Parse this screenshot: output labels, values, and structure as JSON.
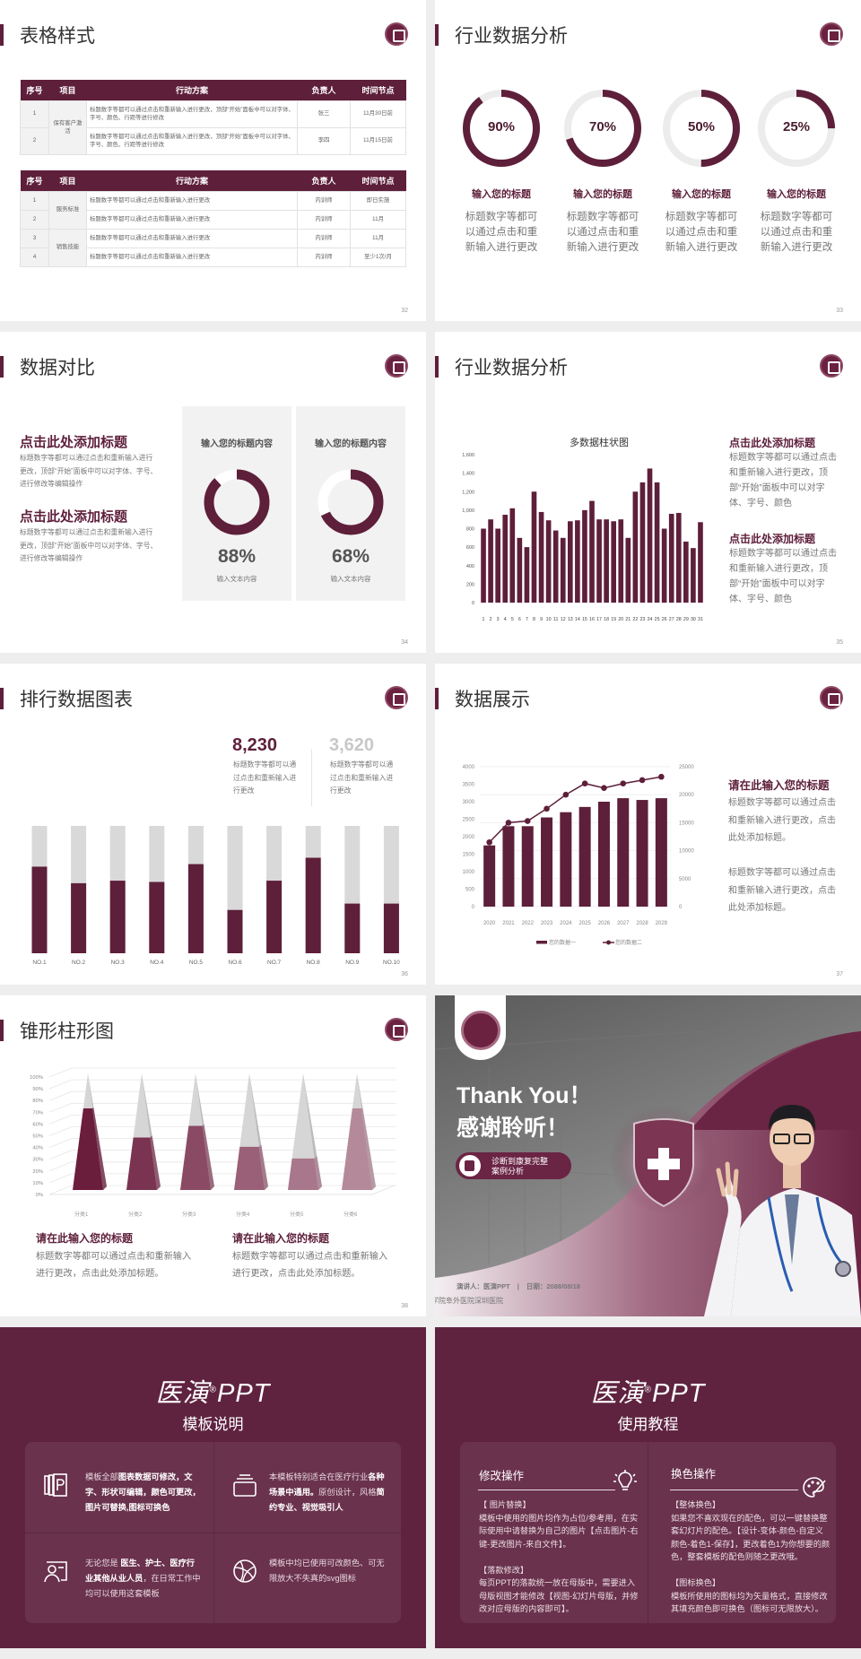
{
  "theme": {
    "accent": "#5e1f3a",
    "track": "#ececec",
    "light_bar": "#d9d9d9",
    "secondary_number": "#c8c8c8"
  },
  "logo_icon": "hospital-emblem-icon",
  "s32": {
    "title": "表格样式",
    "page": "32",
    "headers": [
      "序号",
      "项目",
      "行动方案",
      "负责人",
      "时间节点"
    ],
    "table1": {
      "group": "保有客户激活",
      "rows": [
        {
          "no": "1",
          "plan": "标题数字等都可以通过点击和重新输入进行更改，顶部“开始”面板中可以对字体、字号、颜色、行距等进行修改",
          "owner": "张三",
          "time": "11月30日前"
        },
        {
          "no": "2",
          "plan": "标题数字等都可以通过点击和重新输入进行更改，顶部“开始”面板中可以对字体、字号、颜色、行距等进行修改",
          "owner": "李四",
          "time": "11月15日前"
        }
      ]
    },
    "table2": {
      "groups": [
        "服务标准",
        "销售技能"
      ],
      "rows": [
        {
          "no": "1",
          "plan": "标题数字等都可以通过点击和重新输入进行更改",
          "owner": "内训师",
          "time": "即日实施"
        },
        {
          "no": "2",
          "plan": "标题数字等都可以通过点击和重新输入进行更改",
          "owner": "内训师",
          "time": "11月"
        },
        {
          "no": "3",
          "plan": "标题数字等都可以通过点击和重新输入进行更改",
          "owner": "内训师",
          "time": "11月"
        },
        {
          "no": "4",
          "plan": "标题数字等都可以通过点击和重新输入进行更改",
          "owner": "内训师",
          "time": "至少1次/月"
        }
      ]
    }
  },
  "s33": {
    "title": "行业数据分析",
    "page": "33",
    "items": [
      {
        "value": 90,
        "label": "90%",
        "heading": "输入您的标题",
        "desc": "标题数字等都可以通过点击和重新输入进行更改"
      },
      {
        "value": 70,
        "label": "70%",
        "heading": "输入您的标题",
        "desc": "标题数字等都可以通过点击和重新输入进行更改"
      },
      {
        "value": 50,
        "label": "50%",
        "heading": "输入您的标题",
        "desc": "标题数字等都可以通过点击和重新输入进行更改"
      },
      {
        "value": 25,
        "label": "25%",
        "heading": "输入您的标题",
        "desc": "标题数字等都可以通过点击和重新输入进行更改"
      }
    ]
  },
  "s34": {
    "title": "数据对比",
    "page": "34",
    "blocks": [
      {
        "heading": "点击此处添加标题",
        "body": "标题数字等都可以通过点击和重新输入进行更改，顶部“开始”面板中可以对字体、字号、进行修改等编辑操作"
      },
      {
        "heading": "点击此处添加标题",
        "body": "标题数字等都可以通过点击和重新输入进行更改，顶部“开始”面板中可以对字体、字号、进行修改等编辑操作"
      }
    ],
    "cards": [
      {
        "heading": "输入您的标题内容",
        "value": 88,
        "label": "88%",
        "caption": "输入文本内容"
      },
      {
        "heading": "输入您的标题内容",
        "value": 68,
        "label": "68%",
        "caption": "输入文本内容"
      }
    ]
  },
  "s35": {
    "title": "行业数据分析",
    "page": "35",
    "blocks": [
      {
        "heading": "点击此处添加标题",
        "body": "标题数字等都可以通过点击和重新输入进行更改，顶部“开始”面板中可以对字体、字号、颜色"
      },
      {
        "heading": "点击此处添加标题",
        "body": "标题数字等都可以通过点击和重新输入进行更改，顶部“开始”面板中可以对字体、字号、颜色"
      }
    ]
  },
  "s36": {
    "title": "排行数据图表",
    "page": "36",
    "stats": [
      {
        "value": "8,230",
        "desc": "标题数字等都可以通过点击和重新输入进行更改"
      },
      {
        "value": "3,620",
        "desc": "标题数字等都可以通过点击和重新输入进行更改"
      }
    ]
  },
  "s37": {
    "title": "数据展示",
    "page": "37",
    "heading": "请在此输入您的标题",
    "paras": [
      "标题数字等都可以通过点击和重新输入进行更改，点击此处添加标题。",
      "标题数字等都可以通过点击和重新输入进行更改，点击此处添加标题。"
    ]
  },
  "s38": {
    "title": "锥形柱形图",
    "page": "38",
    "blocks": [
      {
        "heading": "请在此输入您的标题",
        "body": "标题数字等都可以通过点击和重新输入进行更改，点击此处添加标题。"
      },
      {
        "heading": "请在此输入您的标题",
        "body": "标题数字等都可以通过点击和重新输入进行更改，点击此处添加标题。"
      }
    ]
  },
  "thanks": {
    "title_en": "Thank You！",
    "title_cn": "感谢聆听！",
    "pill_line1": "诊断到康复完整",
    "pill_line2": "案例分析",
    "pill_icon": "case-book-icon",
    "presenter": "演讲人：医演PPT",
    "sep": "|",
    "date": "日期：2088/08/18",
    "hospital": "学院阜外医院深圳医院"
  },
  "s_template": {
    "brand": "医演",
    "reg": "®",
    "ppt": "PPT",
    "subtitle": "模板说明",
    "cells": [
      {
        "icon": "pages-icon",
        "parts": [
          "模板全部",
          "图表数据可修改，文字、形状可编辑，颜色可更改，图片可替换,图标可换色"
        ]
      },
      {
        "icon": "layers-icon",
        "parts": [
          "本模板特别适合在医疗行业",
          "各种场景中通用。",
          "原创设计，风格",
          "简约专业、视觉吸引人"
        ]
      },
      {
        "icon": "user-card-icon",
        "parts": [
          "无论您是 ",
          "医生、护士、医疗行业其他从业人员",
          "，在日常工作中均可以使用这套模板"
        ]
      },
      {
        "icon": "basketball-icon",
        "parts": [
          "模板中均已使用可改颜色、可无限放大不失真的svg图标"
        ]
      }
    ]
  },
  "s_tutorial": {
    "brand": "医演",
    "reg": "®",
    "ppt": "PPT",
    "subtitle": "使用教程",
    "cols": [
      {
        "heading": "修改操作",
        "icon": "lightbulb-icon",
        "text": "【 图片替换】\n模板中使用的图片均作为占位/参考用，在实际使用中请替换为自己的图片【点击图片-右键-更改图片-来自文件】。\n\n【落款修改】\n每页PPT的落款统一放在母版中，需要进入母版视图才能修改【视图-幻灯片母版，并修改对应母版的内容即可】。"
      },
      {
        "heading": "换色操作",
        "icon": "palette-icon",
        "text": "【整体换色】\n如果您不喜欢现在的配色，可以一键替换整套幻灯片的配色。【设计-变体-颜色-自定义颜色-着色1-保存】，更改着色1为你想要的颜色，整套模板的配色则随之更改哦。\n\n【图标换色】\n模板所使用的图标均为矢量格式，直接修改其填充颜色即可换色（图标可无限放大）。"
      }
    ]
  },
  "chart_data": [
    {
      "type": "bar",
      "title": "多数据柱状图",
      "categories": [
        "1",
        "2",
        "3",
        "4",
        "5",
        "6",
        "7",
        "8",
        "9",
        "10",
        "11",
        "12",
        "13",
        "14",
        "15",
        "16",
        "17",
        "18",
        "19",
        "20",
        "21",
        "22",
        "23",
        "24",
        "25",
        "26",
        "27",
        "28",
        "29",
        "30",
        "31"
      ],
      "values": [
        800,
        900,
        800,
        950,
        1020,
        700,
        600,
        1200,
        980,
        890,
        780,
        700,
        880,
        890,
        1000,
        1100,
        900,
        900,
        880,
        900,
        700,
        1200,
        1300,
        1450,
        1300,
        800,
        960,
        970,
        660,
        590,
        870
      ],
      "ylim": [
        0,
        1600
      ],
      "yticks": [
        "0",
        "200",
        "400",
        "600",
        "800",
        "1,000",
        "1,200",
        "1,400",
        "1,600"
      ],
      "grid": false
    },
    {
      "type": "bar",
      "stacked_to": 100,
      "categories": [
        "NO.1",
        "NO.2",
        "NO.3",
        "NO.4",
        "NO.5",
        "NO.6",
        "NO.7",
        "NO.8",
        "NO.9",
        "NO.10"
      ],
      "values": [
        68,
        55,
        57,
        56,
        70,
        34,
        57,
        75,
        39,
        39
      ],
      "ylim": [
        0,
        100
      ]
    },
    {
      "type": "bar+line",
      "categories": [
        "2020",
        "2021",
        "2022",
        "2023",
        "2024",
        "2025",
        "2026",
        "2027",
        "2028",
        "2029"
      ],
      "series": [
        {
          "name": "您的数据一",
          "type": "bar",
          "axis": "left",
          "values": [
            1750,
            2300,
            2300,
            2550,
            2700,
            2850,
            3000,
            3100,
            3050,
            3100
          ]
        },
        {
          "name": "您的数据二",
          "type": "line",
          "axis": "right",
          "values": [
            11500,
            15000,
            15300,
            17500,
            20000,
            22000,
            21200,
            22000,
            22600,
            23200
          ]
        }
      ],
      "ylim_left": [
        0,
        4000
      ],
      "yticks_left": [
        "0",
        "500",
        "1000",
        "1500",
        "2000",
        "2500",
        "3000",
        "3500",
        "4000"
      ],
      "ylim_right": [
        0,
        25000
      ],
      "yticks_right": [
        "0",
        "5000",
        "10000",
        "15000",
        "20000",
        "25000"
      ],
      "legend": "bottom"
    },
    {
      "type": "cone",
      "categories": [
        "分类1",
        "分类2",
        "分类3",
        "分类4",
        "分类5",
        "分类6"
      ],
      "values": [
        70,
        45,
        55,
        37,
        27,
        70
      ],
      "ylim": [
        0,
        100
      ],
      "yticks": [
        "0%",
        "10%",
        "20%",
        "30%",
        "40%",
        "50%",
        "60%",
        "70%",
        "80%",
        "90%",
        "100%"
      ],
      "colors": [
        "#6b1d3c",
        "#7a3350",
        "#8a4a64",
        "#9a6077",
        "#a9778b",
        "#b48a9b"
      ],
      "grid": true
    }
  ]
}
